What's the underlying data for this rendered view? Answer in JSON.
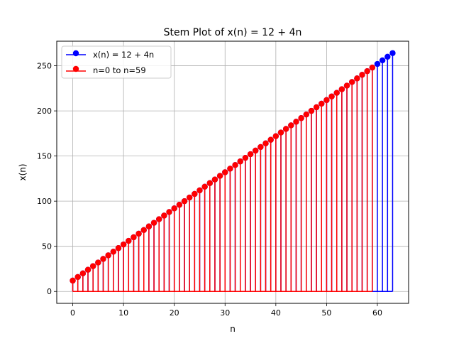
{
  "chart_data": {
    "type": "stem",
    "title": "Stem Plot of x(n) = 12 + 4n",
    "xlabel": "n",
    "ylabel": "x(n)",
    "xlim": [
      -3.15,
      66.15
    ],
    "ylim": [
      -13.2,
      277.2
    ],
    "xticks": [
      0,
      10,
      20,
      30,
      40,
      50,
      60
    ],
    "yticks": [
      0,
      50,
      100,
      150,
      200,
      250
    ],
    "grid": true,
    "legend_position": "upper-left",
    "series": [
      {
        "name": "x(n) = 12 + 4n",
        "color": "#0000ff",
        "n_start": 0,
        "n_end": 63,
        "formula": {
          "intercept": 12,
          "slope": 4
        }
      },
      {
        "name": "n=0 to n=59",
        "color": "#ff0000",
        "n_start": 0,
        "n_end": 59,
        "formula": {
          "intercept": 12,
          "slope": 4
        }
      }
    ]
  }
}
